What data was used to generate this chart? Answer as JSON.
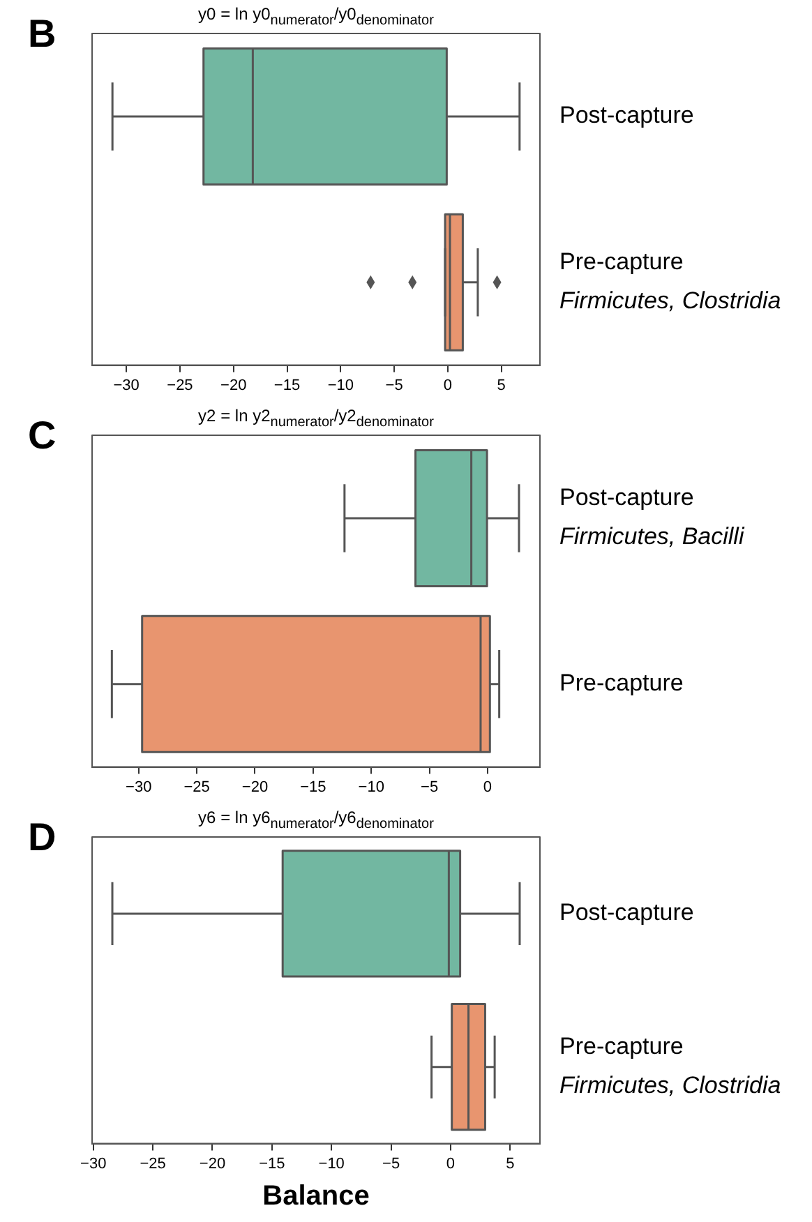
{
  "chart_data": [
    {
      "type": "box",
      "orientation": "horizontal",
      "title": "y0 = ln y0$_{numerator}$/y0$_{denominator}$",
      "categories": [
        "Post-capture",
        "Pre-capture\nFirmicutes, Clostridia"
      ],
      "colors": [
        "#72b7a1",
        "#e8956f"
      ],
      "boxes": [
        {
          "low": -31.3,
          "q1": -22.8,
          "median": -18.2,
          "q3": -0.1,
          "high": 6.7
        },
        {
          "low": -0.25,
          "q1": -0.25,
          "median": 0.2,
          "q3": 1.4,
          "high": 2.8,
          "outliers": [
            -7.2,
            -3.3,
            4.6
          ]
        }
      ],
      "xlim": [
        -33.2,
        8.6
      ],
      "xticks": [
        -30,
        -25,
        -20,
        -15,
        -10,
        -5,
        0,
        5
      ],
      "legend": false,
      "annotations": [
        "B"
      ]
    },
    {
      "type": "box",
      "orientation": "horizontal",
      "title": "y2 = ln y2$_{numerator}$/y2$_{denominator}$",
      "categories": [
        "Post-capture\nFirmicutes, Bacilli",
        "Pre-capture"
      ],
      "colors": [
        "#72b7a1",
        "#e8956f"
      ],
      "boxes": [
        {
          "low": -12.3,
          "q1": -6.2,
          "median": -1.4,
          "q3": -0.05,
          "high": 2.7
        },
        {
          "low": -32.3,
          "q1": -29.7,
          "median": -0.6,
          "q3": 0.2,
          "high": 1
        }
      ],
      "xlim": [
        -34,
        4.5
      ],
      "xticks": [
        -30,
        -25,
        -20,
        -15,
        -10,
        -5,
        0
      ],
      "legend": false,
      "annotations": [
        "C"
      ]
    },
    {
      "type": "box",
      "orientation": "horizontal",
      "title": "y6 = ln y6$_{numerator}$/y6$_{denominator}$",
      "xlabel": "Balance",
      "categories": [
        "Post-capture",
        "Pre-capture\nFirmicutes, Clostridia"
      ],
      "colors": [
        "#72b7a1",
        "#e8956f"
      ],
      "boxes": [
        {
          "low": -28.4,
          "q1": -14.1,
          "median": -0.15,
          "q3": 0.8,
          "high": 5.8
        },
        {
          "low": -1.6,
          "q1": 0.1,
          "median": 1.5,
          "q3": 2.9,
          "high": 3.7
        }
      ],
      "xlim": [
        -30.1,
        7.5
      ],
      "xticks": [
        -30,
        -25,
        -20,
        -15,
        -10,
        -5,
        0,
        5
      ],
      "legend": false,
      "annotations": [
        "D"
      ]
    }
  ]
}
